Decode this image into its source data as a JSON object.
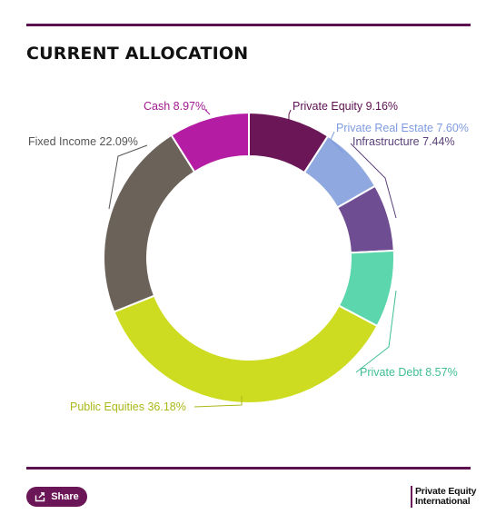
{
  "header": {
    "title": "CURRENT ALLOCATION"
  },
  "chart_data": {
    "type": "donut",
    "title": "CURRENT ALLOCATION",
    "unit": "%",
    "slices": [
      {
        "label": "Private Equity",
        "value": 9.16,
        "display": "Private Equity 9.16%",
        "color": "#6b1657",
        "label_color": "#5c1050"
      },
      {
        "label": "Private Real Estate",
        "value": 7.6,
        "display": "Private Real Estate 7.60%",
        "color": "#8fa8df",
        "label_color": "#7f9be0"
      },
      {
        "label": "Infrastructure",
        "value": 7.44,
        "display": "Infrastructure 7.44%",
        "color": "#6f4d92",
        "label_color": "#5a3f7a"
      },
      {
        "label": "Private Debt",
        "value": 8.57,
        "display": "Private Debt 8.57%",
        "color": "#5cd6ad",
        "label_color": "#3fbf92"
      },
      {
        "label": "Public Equities",
        "value": 36.18,
        "display": "Public Equities 36.18%",
        "color": "#cddc20",
        "label_color": "#a9b818"
      },
      {
        "label": "Fixed Income",
        "value": 22.09,
        "display": "Fixed Income 22.09%",
        "color": "#6b6259",
        "label_color": "#555555"
      },
      {
        "label": "Cash",
        "value": 8.97,
        "display": "Cash 8.97%",
        "color": "#b41ca3",
        "label_color": "#a0198f"
      }
    ]
  },
  "footer": {
    "share_label": "Share",
    "brand_line1": "Private Equity",
    "brand_line2": "International"
  }
}
